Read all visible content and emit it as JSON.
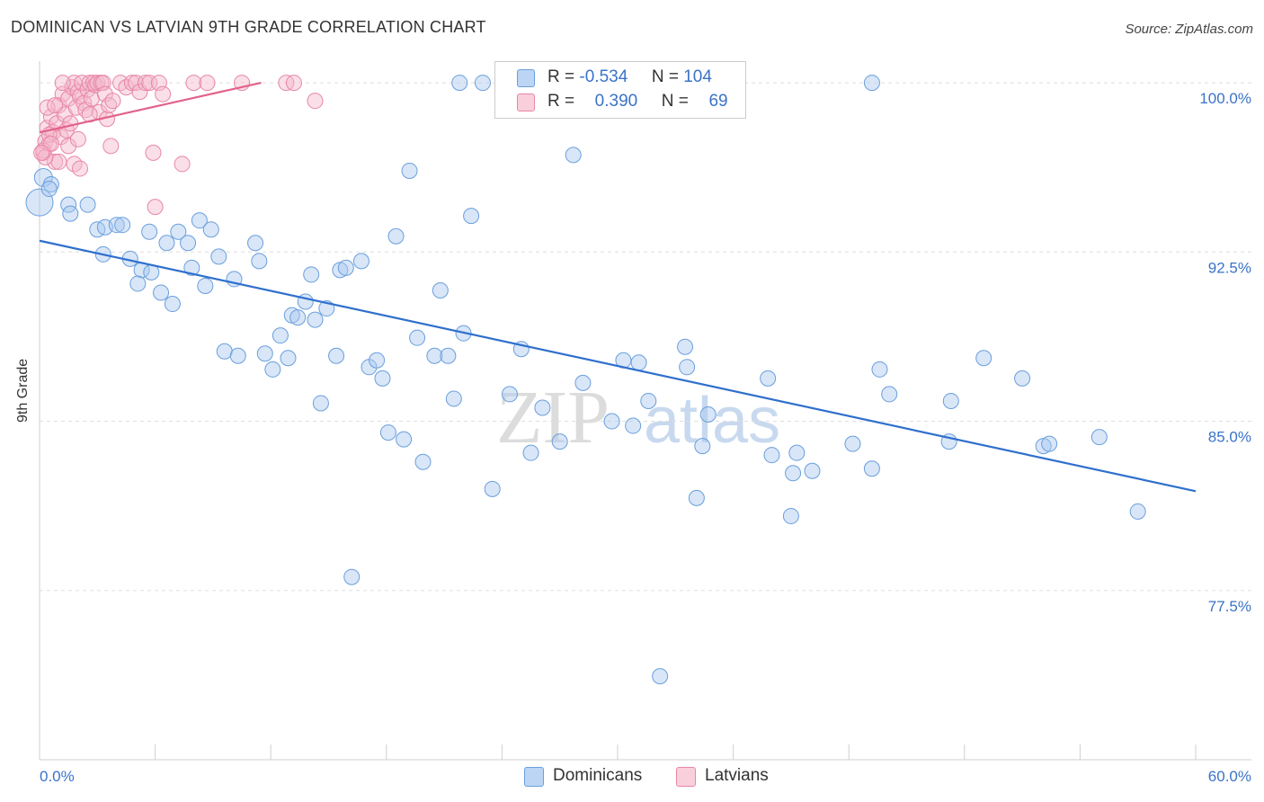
{
  "header": {
    "title": "DOMINICAN VS LATVIAN 9TH GRADE CORRELATION CHART",
    "source": "Source: ZipAtlas.com"
  },
  "watermark": {
    "part1": "ZIP",
    "part2": "atlas"
  },
  "legend": {
    "rows": [
      {
        "r_label": "R =",
        "r_value": "-0.534",
        "n_label": "N =",
        "n_value": "104",
        "color": "#a8c8f0"
      },
      {
        "r_label": "R =",
        "r_value": "0.390",
        "n_label": "N =",
        "n_value": "69",
        "color": "#f5b8cc"
      }
    ]
  },
  "chart_data": {
    "type": "scatter",
    "title": "DOMINICAN VS LATVIAN 9TH GRADE CORRELATION CHART",
    "xlabel": "",
    "ylabel": "9th Grade",
    "xlim": [
      0,
      60
    ],
    "ylim": [
      70,
      100.8
    ],
    "x_tick_labels": [
      "0.0%",
      "60.0%"
    ],
    "y_ticks": [
      77.5,
      85.0,
      92.5,
      100.0
    ],
    "y_tick_labels": [
      "77.5%",
      "85.0%",
      "92.5%",
      "100.0%"
    ],
    "grid": "horizontal dashed",
    "legend_position": "top-center",
    "series": [
      {
        "name": "Dominicans",
        "color": "#a8c8f0",
        "stroke": "#6a9fdc",
        "trend": {
          "x": [
            0,
            60
          ],
          "y": [
            93.0,
            81.9
          ],
          "color": "#2f6fcd"
        },
        "points": [
          [
            0.0,
            94.7
          ],
          [
            0.2,
            95.8
          ],
          [
            0.6,
            95.5
          ],
          [
            0.5,
            95.3
          ],
          [
            1.5,
            94.6
          ],
          [
            1.6,
            94.2
          ],
          [
            2.5,
            94.6
          ],
          [
            3.0,
            93.5
          ],
          [
            3.4,
            93.6
          ],
          [
            3.3,
            92.4
          ],
          [
            4.0,
            93.7
          ],
          [
            4.3,
            93.7
          ],
          [
            4.7,
            92.2
          ],
          [
            5.3,
            91.7
          ],
          [
            5.1,
            91.1
          ],
          [
            5.8,
            91.6
          ],
          [
            5.7,
            93.4
          ],
          [
            6.3,
            90.7
          ],
          [
            6.6,
            92.9
          ],
          [
            6.9,
            90.2
          ],
          [
            7.2,
            93.4
          ],
          [
            7.7,
            92.9
          ],
          [
            7.9,
            91.8
          ],
          [
            8.3,
            93.9
          ],
          [
            8.6,
            91.0
          ],
          [
            8.9,
            93.5
          ],
          [
            9.3,
            92.3
          ],
          [
            9.6,
            88.1
          ],
          [
            10.1,
            91.3
          ],
          [
            10.3,
            87.9
          ],
          [
            11.2,
            92.9
          ],
          [
            11.4,
            92.1
          ],
          [
            11.7,
            88.0
          ],
          [
            12.1,
            87.3
          ],
          [
            12.5,
            88.8
          ],
          [
            12.9,
            87.8
          ],
          [
            13.1,
            89.7
          ],
          [
            13.4,
            89.6
          ],
          [
            13.8,
            90.3
          ],
          [
            14.1,
            91.5
          ],
          [
            14.3,
            89.5
          ],
          [
            14.6,
            85.8
          ],
          [
            14.9,
            90.0
          ],
          [
            15.4,
            87.9
          ],
          [
            15.6,
            91.7
          ],
          [
            15.9,
            91.8
          ],
          [
            16.2,
            78.1
          ],
          [
            16.7,
            92.1
          ],
          [
            17.1,
            87.4
          ],
          [
            17.5,
            87.7
          ],
          [
            17.8,
            86.9
          ],
          [
            18.1,
            84.5
          ],
          [
            18.5,
            93.2
          ],
          [
            18.9,
            84.2
          ],
          [
            19.2,
            96.1
          ],
          [
            19.6,
            88.7
          ],
          [
            19.9,
            83.2
          ],
          [
            20.5,
            87.9
          ],
          [
            20.8,
            90.8
          ],
          [
            21.2,
            87.9
          ],
          [
            21.5,
            86.0
          ],
          [
            22.0,
            88.9
          ],
          [
            22.4,
            94.1
          ],
          [
            21.8,
            100.0
          ],
          [
            23.0,
            100.0
          ],
          [
            23.5,
            82.0
          ],
          [
            24.4,
            86.2
          ],
          [
            25.0,
            88.2
          ],
          [
            25.5,
            83.6
          ],
          [
            26.1,
            85.6
          ],
          [
            27.0,
            84.1
          ],
          [
            27.7,
            96.8
          ],
          [
            28.2,
            86.7
          ],
          [
            29.7,
            85.0
          ],
          [
            30.3,
            87.7
          ],
          [
            30.8,
            84.8
          ],
          [
            31.1,
            87.6
          ],
          [
            31.6,
            85.9
          ],
          [
            32.2,
            73.7
          ],
          [
            32.5,
            100.0
          ],
          [
            33.6,
            87.4
          ],
          [
            33.5,
            88.3
          ],
          [
            34.1,
            81.6
          ],
          [
            34.4,
            83.9
          ],
          [
            34.7,
            85.3
          ],
          [
            37.8,
            86.9
          ],
          [
            38.0,
            83.5
          ],
          [
            39.0,
            80.8
          ],
          [
            39.1,
            82.7
          ],
          [
            39.3,
            83.6
          ],
          [
            40.1,
            82.8
          ],
          [
            42.2,
            84.0
          ],
          [
            43.2,
            82.9
          ],
          [
            43.6,
            87.3
          ],
          [
            44.1,
            86.2
          ],
          [
            43.2,
            100.0
          ],
          [
            47.3,
            85.9
          ],
          [
            49.0,
            87.8
          ],
          [
            51.0,
            86.9
          ],
          [
            52.1,
            83.9
          ],
          [
            52.4,
            84.0
          ],
          [
            57.0,
            81.0
          ],
          [
            55.0,
            84.3
          ],
          [
            47.2,
            84.1
          ]
        ]
      },
      {
        "name": "Latvians",
        "color": "#f5b8cc",
        "stroke": "#e887a6",
        "trend": {
          "x": [
            0,
            11.5
          ],
          "y": [
            97.8,
            100.0
          ],
          "color": "#e2628a"
        },
        "points": [
          [
            0.2,
            96.9
          ],
          [
            0.3,
            97.4
          ],
          [
            0.4,
            98.0
          ],
          [
            0.5,
            97.3
          ],
          [
            0.6,
            98.5
          ],
          [
            0.7,
            97.8
          ],
          [
            0.8,
            96.5
          ],
          [
            0.9,
            98.2
          ],
          [
            1.0,
            99.0
          ],
          [
            1.1,
            97.6
          ],
          [
            1.2,
            99.5
          ],
          [
            1.3,
            98.6
          ],
          [
            1.4,
            97.9
          ],
          [
            1.5,
            99.3
          ],
          [
            1.6,
            98.2
          ],
          [
            1.7,
            99.8
          ],
          [
            1.8,
            100.0
          ],
          [
            1.9,
            98.9
          ],
          [
            2.0,
            99.6
          ],
          [
            2.1,
            99.4
          ],
          [
            2.2,
            100.0
          ],
          [
            2.3,
            99.1
          ],
          [
            2.4,
            98.8
          ],
          [
            2.5,
            99.7
          ],
          [
            2.6,
            100.0
          ],
          [
            2.7,
            99.3
          ],
          [
            2.8,
            100.0
          ],
          [
            2.9,
            99.9
          ],
          [
            3.0,
            100.0
          ],
          [
            3.1,
            98.7
          ],
          [
            3.2,
            100.0
          ],
          [
            3.3,
            100.0
          ],
          [
            3.4,
            99.5
          ],
          [
            3.5,
            98.4
          ],
          [
            3.6,
            99.0
          ],
          [
            3.7,
            97.2
          ],
          [
            3.8,
            99.2
          ],
          [
            4.2,
            100.0
          ],
          [
            4.5,
            99.8
          ],
          [
            4.8,
            100.0
          ],
          [
            5.0,
            100.0
          ],
          [
            5.2,
            99.6
          ],
          [
            5.5,
            100.0
          ],
          [
            5.7,
            100.0
          ],
          [
            5.9,
            96.9
          ],
          [
            6.0,
            94.5
          ],
          [
            6.2,
            100.0
          ],
          [
            6.4,
            99.5
          ],
          [
            7.4,
            96.4
          ],
          [
            8.0,
            100.0
          ],
          [
            8.7,
            100.0
          ],
          [
            10.5,
            100.0
          ],
          [
            12.8,
            100.0
          ],
          [
            13.2,
            100.0
          ],
          [
            14.3,
            99.2
          ],
          [
            0.2,
            97.0
          ],
          [
            0.5,
            97.7
          ],
          [
            1.0,
            96.5
          ],
          [
            1.5,
            97.2
          ],
          [
            1.8,
            96.4
          ],
          [
            2.1,
            96.2
          ],
          [
            0.4,
            98.9
          ],
          [
            0.8,
            99.0
          ],
          [
            1.2,
            100.0
          ],
          [
            2.0,
            97.5
          ],
          [
            2.6,
            98.6
          ],
          [
            0.3,
            96.7
          ],
          [
            0.6,
            97.3
          ],
          [
            0.1,
            96.9
          ]
        ]
      }
    ]
  },
  "bottom_legend": [
    {
      "label": "Dominicans",
      "color": "#a8c8f0"
    },
    {
      "label": "Latvians",
      "color": "#f5b8cc"
    }
  ]
}
